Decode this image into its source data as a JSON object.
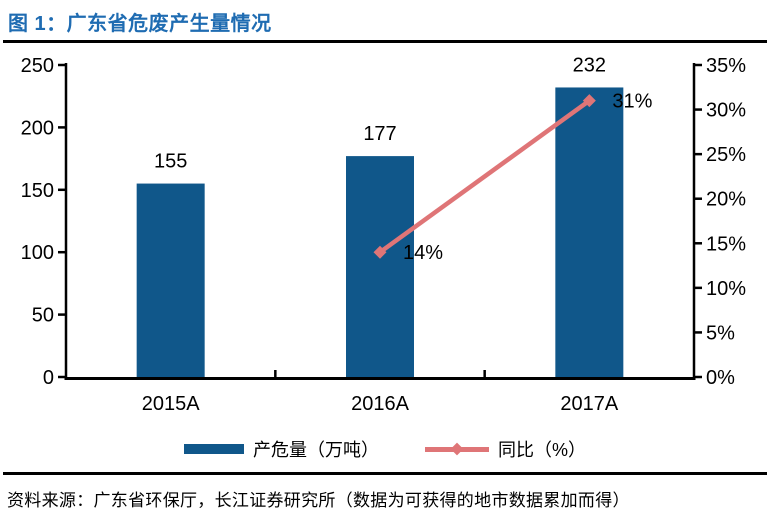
{
  "header": {
    "title": "图 1：广东省危废产生量情况"
  },
  "chart_data": {
    "type": "bar",
    "title": "广东省危废产生量情况",
    "categories": [
      "2015A",
      "2016A",
      "2017A"
    ],
    "series": [
      {
        "name": "产危量（万吨）",
        "type": "bar",
        "axis": "left",
        "values": [
          155,
          177,
          232
        ],
        "data_labels": [
          "155",
          "177",
          "232"
        ],
        "color": "#10578A"
      },
      {
        "name": "同比（%）",
        "type": "line",
        "axis": "right",
        "values": [
          null,
          14,
          31
        ],
        "data_labels": [
          "",
          "14%",
          "31%"
        ],
        "color": "#DF7577",
        "marker": "diamond"
      }
    ],
    "left_axis": {
      "min": 0,
      "max": 250,
      "tick_labels": [
        "0",
        "50",
        "100",
        "150",
        "200",
        "250"
      ]
    },
    "right_axis": {
      "min": 0,
      "max": 35,
      "tick_labels": [
        "0%",
        "5%",
        "10%",
        "15%",
        "20%",
        "25%",
        "30%",
        "35%"
      ]
    },
    "legend_position": "bottom",
    "grid": false
  },
  "legend": {
    "items": [
      {
        "label": "产危量（万吨）",
        "marker": "bar",
        "color": "#10578A"
      },
      {
        "label": "同比（%）",
        "marker": "line-diamond",
        "color": "#DF7577"
      }
    ]
  },
  "footer": {
    "source_text": "资料来源：广东省环保厅，长江证券研究所（数据为可获得的地市数据累加而得）"
  },
  "colors": {
    "title": "#1F6CB2",
    "bar": "#10578A",
    "line": "#DF7577",
    "axis": "#000000",
    "rule": "#000000"
  }
}
